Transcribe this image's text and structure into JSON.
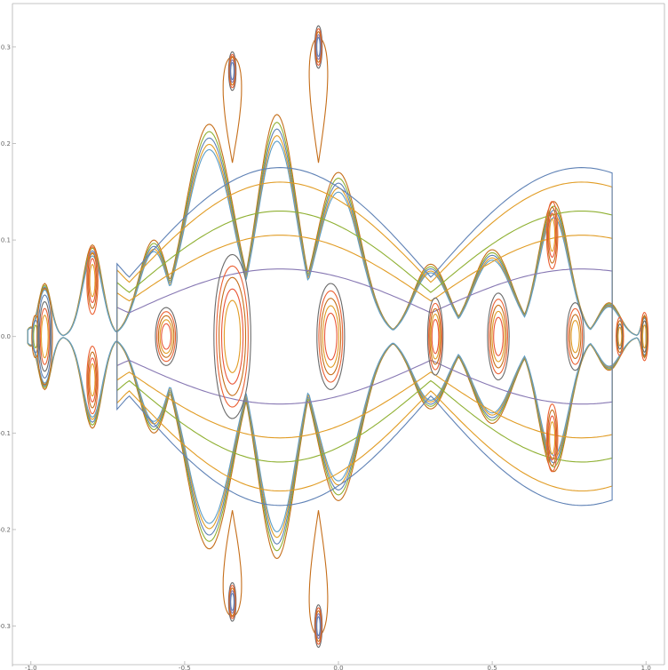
{
  "chart_data": {
    "type": "line",
    "title": "",
    "xlabel": "",
    "ylabel": "",
    "xlim": [
      -1.06,
      1.06
    ],
    "ylim": [
      -0.34,
      0.345
    ],
    "grid": false,
    "legend": "none",
    "x_ticks": [
      {
        "value": -1.0,
        "label": "-1.0"
      },
      {
        "value": -0.5,
        "label": "-0.5"
      },
      {
        "value": 0.0,
        "label": "0.0"
      },
      {
        "value": 0.5,
        "label": "0.5"
      },
      {
        "value": 1.0,
        "label": "1.0"
      }
    ],
    "y_ticks": [
      {
        "value": 0.3,
        "label": "0.3"
      },
      {
        "value": 0.2,
        "label": "0.2"
      },
      {
        "value": 0.1,
        "label": "0.1"
      },
      {
        "value": 0.0,
        "label": "0.0"
      },
      {
        "value": -0.1,
        "label": "-0.1"
      },
      {
        "value": -0.2,
        "label": "-0.2"
      },
      {
        "value": -0.3,
        "label": "-0.3"
      }
    ],
    "palette": [
      "#5e81b5",
      "#e19c24",
      "#8fb032",
      "#eb6235",
      "#8778b3",
      "#c56e1a",
      "#5d9ec7",
      "#ffbf00",
      "#a5609d",
      "#929600",
      "#e95536",
      "#6685d9",
      "#6a6a6a"
    ],
    "series": [
      {
        "color_index": 5,
        "values": [
          [
            0.0,
            0.023
          ],
          [
            0.0,
            0.019
          ],
          [
            -0.001,
            0.015
          ],
          [
            -0.001,
            0.011
          ],
          [
            0.0,
            0.007
          ],
          [
            0.0,
            0.003
          ],
          [
            0.0,
            -0.001
          ],
          [
            0.0,
            -0.005
          ],
          [
            0.0,
            -0.009
          ],
          [
            0.0,
            -0.013
          ],
          [
            0.0,
            -0.017
          ],
          [
            0.0,
            -0.021
          ],
          [
            0.001,
            0.025
          ]
        ],
        "closed": true,
        "note_center": [
          -1.0,
          0.0
        ]
      }
    ],
    "families": [
      {
        "kind": "outer",
        "color_index": 5,
        "scale": 1.0
      },
      {
        "kind": "outer",
        "color_index": 2,
        "scale": 0.965
      },
      {
        "kind": "outer",
        "color_index": 0,
        "scale": 0.935
      },
      {
        "kind": "outer",
        "color_index": 1,
        "scale": 0.905
      },
      {
        "kind": "outer",
        "color_index": 6,
        "scale": 0.88
      }
    ],
    "islands": [
      {
        "cx": -0.985,
        "cy": 0.0,
        "rx": 0.012,
        "ry": 0.022,
        "rings": 3,
        "colors": [
          5,
          0,
          2
        ]
      },
      {
        "cx": -0.955,
        "cy": 0.0,
        "rx": 0.025,
        "ry": 0.05,
        "rings": 5,
        "colors": [
          5,
          0,
          12,
          3,
          1
        ]
      },
      {
        "cx": -0.8,
        "cy": 0.058,
        "rx": 0.018,
        "ry": 0.035,
        "rings": 4,
        "colors": [
          3,
          5,
          10,
          1
        ]
      },
      {
        "cx": -0.8,
        "cy": -0.045,
        "rx": 0.018,
        "ry": 0.035,
        "rings": 4,
        "colors": [
          3,
          5,
          10,
          1
        ]
      },
      {
        "cx": -0.56,
        "cy": 0.0,
        "rx": 0.035,
        "ry": 0.03,
        "rings": 5,
        "colors": [
          12,
          3,
          5,
          1,
          10
        ]
      },
      {
        "cx": -0.345,
        "cy": 0.0,
        "rx": 0.06,
        "ry": 0.085,
        "rings": 5,
        "colors": [
          12,
          3,
          5,
          10,
          1
        ]
      },
      {
        "cx": -0.025,
        "cy": 0.0,
        "rx": 0.045,
        "ry": 0.055,
        "rings": 5,
        "colors": [
          12,
          3,
          5,
          1,
          10
        ]
      },
      {
        "cx": 0.315,
        "cy": 0.0,
        "rx": 0.025,
        "ry": 0.04,
        "rings": 5,
        "colors": [
          12,
          3,
          5,
          1,
          10
        ]
      },
      {
        "cx": 0.52,
        "cy": 0.0,
        "rx": 0.035,
        "ry": 0.045,
        "rings": 5,
        "colors": [
          12,
          3,
          5,
          1,
          10
        ]
      },
      {
        "cx": 0.77,
        "cy": 0.0,
        "rx": 0.028,
        "ry": 0.035,
        "rings": 4,
        "colors": [
          12,
          3,
          5,
          1
        ]
      },
      {
        "cx": 0.695,
        "cy": 0.105,
        "rx": 0.018,
        "ry": 0.035,
        "rings": 4,
        "colors": [
          3,
          5,
          10,
          1
        ]
      },
      {
        "cx": 0.695,
        "cy": -0.105,
        "rx": 0.018,
        "ry": 0.035,
        "rings": 4,
        "colors": [
          3,
          5,
          10,
          1
        ]
      },
      {
        "cx": 0.915,
        "cy": 0.0,
        "rx": 0.012,
        "ry": 0.02,
        "rings": 4,
        "colors": [
          3,
          5,
          12,
          1
        ]
      },
      {
        "cx": 0.995,
        "cy": 0.0,
        "rx": 0.012,
        "ry": 0.025,
        "rings": 4,
        "colors": [
          3,
          5,
          12,
          1
        ]
      },
      {
        "cx": -0.345,
        "cy": 0.275,
        "rx": 0.012,
        "ry": 0.02,
        "rings": 5,
        "colors": [
          12,
          3,
          5,
          4,
          0
        ]
      },
      {
        "cx": -0.345,
        "cy": -0.275,
        "rx": 0.012,
        "ry": 0.02,
        "rings": 5,
        "colors": [
          12,
          3,
          5,
          4,
          0
        ]
      },
      {
        "cx": -0.065,
        "cy": 0.3,
        "rx": 0.012,
        "ry": 0.022,
        "rings": 5,
        "colors": [
          12,
          3,
          5,
          4,
          0
        ]
      },
      {
        "cx": -0.065,
        "cy": -0.3,
        "rx": 0.012,
        "ry": 0.022,
        "rings": 5,
        "colors": [
          12,
          3,
          5,
          4,
          0
        ]
      }
    ],
    "separatrix_bands": [
      {
        "color_index": 4,
        "amp": 0.07,
        "center": -0.19
      },
      {
        "color_index": 1,
        "amp": 0.105,
        "center": -0.19
      },
      {
        "color_index": 2,
        "amp": 0.13,
        "center": -0.19
      },
      {
        "color_index": 1,
        "amp": 0.16,
        "center": -0.19
      },
      {
        "color_index": 0,
        "amp": 0.175,
        "center": -0.19
      }
    ]
  }
}
